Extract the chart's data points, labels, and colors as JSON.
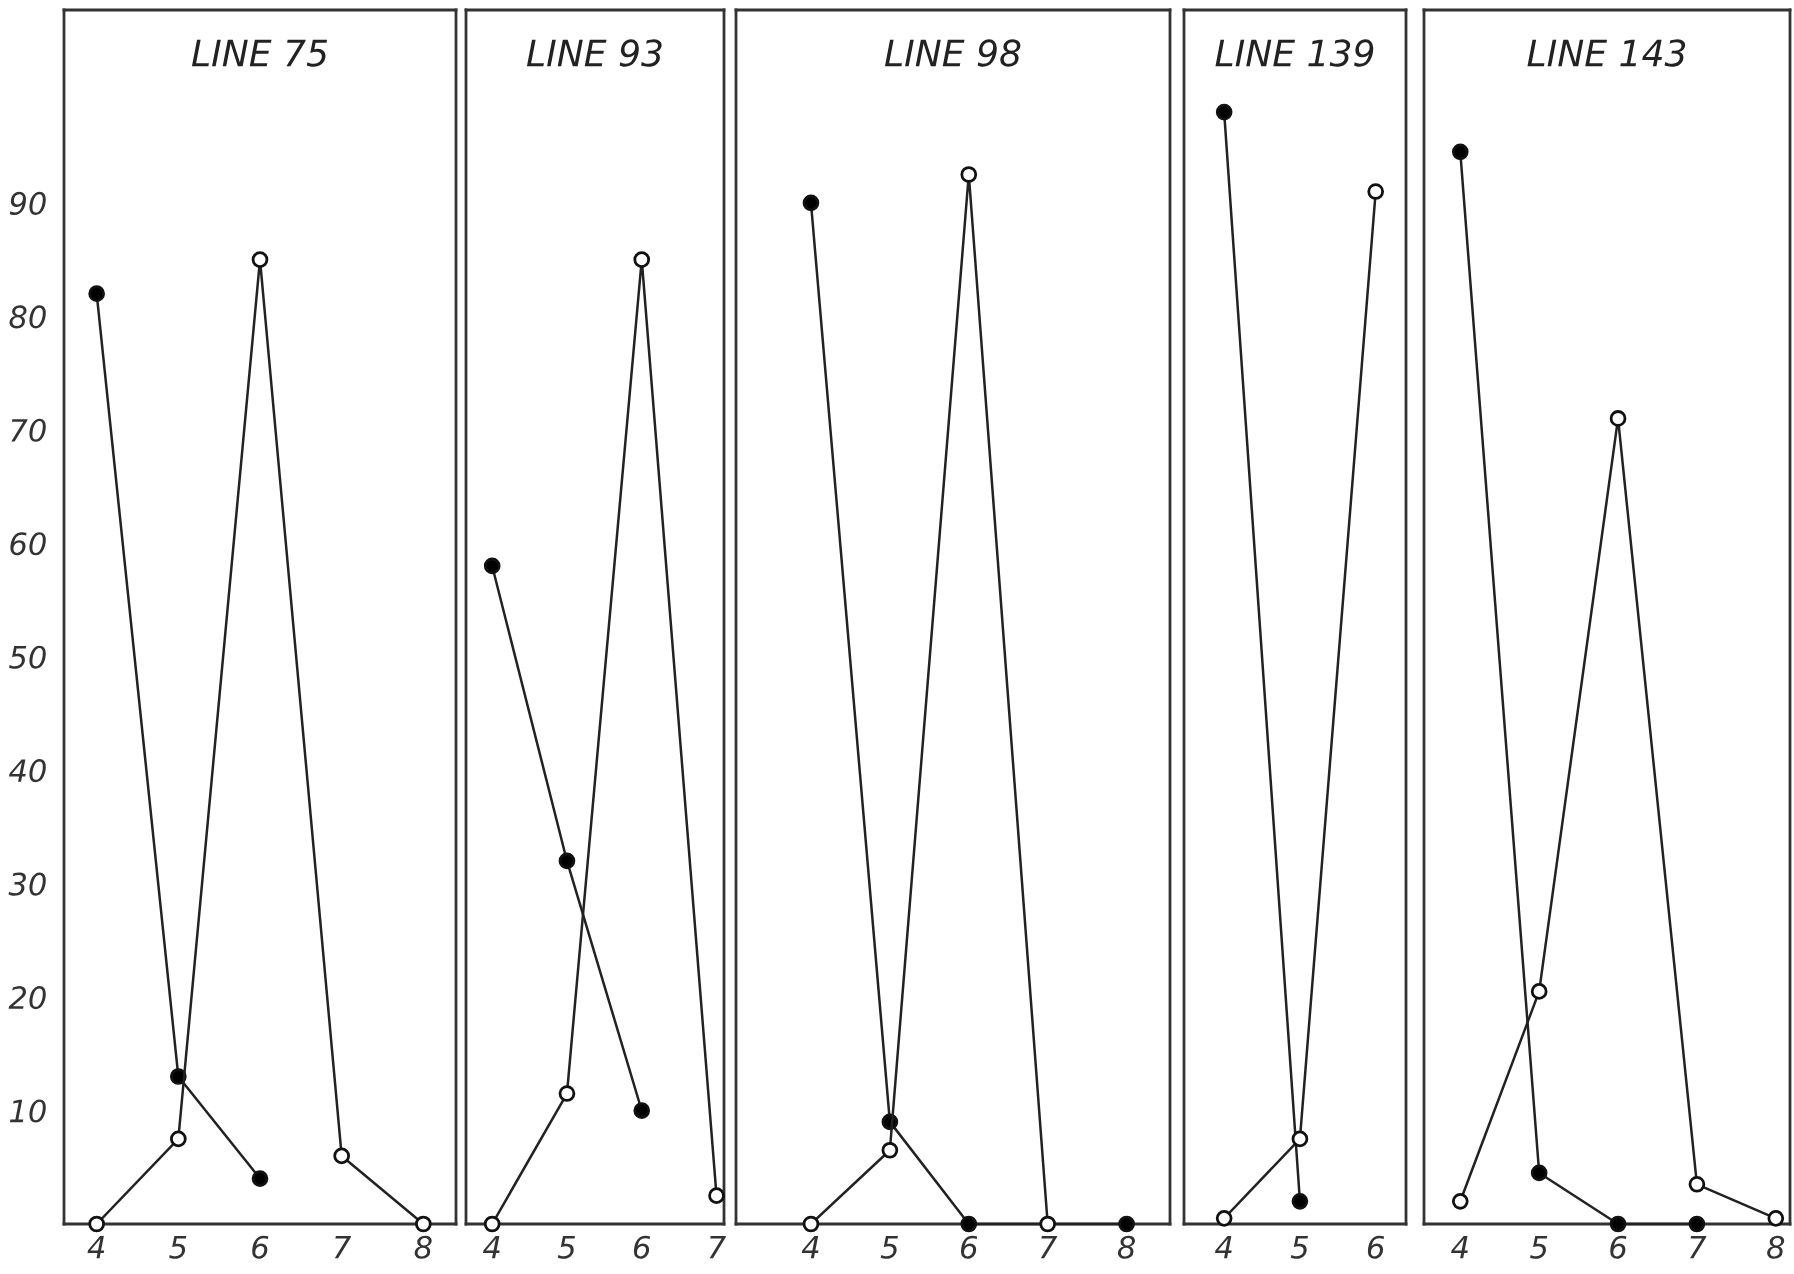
{
  "chart_data": [
    {
      "type": "line",
      "title": "LINE 75",
      "xlim": [
        3.6,
        8.4
      ],
      "xticks": [
        4,
        5,
        6,
        7,
        8
      ],
      "ylim": [
        0,
        107
      ],
      "yticks": [
        10,
        20,
        30,
        40,
        50,
        60,
        70,
        80,
        90
      ],
      "marker": "circle",
      "grid": false,
      "series": [
        {
          "color": "#000000",
          "x": [
            4,
            5,
            6
          ],
          "values": [
            82,
            13,
            4
          ]
        },
        {
          "color": "#ffffff",
          "x": [
            4,
            5,
            6,
            7,
            8
          ],
          "values": [
            0,
            7.5,
            85,
            6,
            0
          ]
        }
      ]
    },
    {
      "type": "line",
      "title": "LINE 93",
      "xlim": [
        3.65,
        7.1
      ],
      "xticks": [
        4,
        5,
        6,
        7
      ],
      "ylim": [
        0,
        107
      ],
      "yticks": [
        10,
        20,
        30,
        40,
        50,
        60,
        70,
        80,
        90
      ],
      "tick_labels": "x",
      "marker": "circle",
      "grid": false,
      "series": [
        {
          "color": "#000000",
          "x": [
            4,
            5,
            6
          ],
          "values": [
            58,
            32,
            10
          ]
        },
        {
          "color": "#ffffff",
          "x": [
            4,
            5,
            6,
            7
          ],
          "values": [
            0,
            11.5,
            85,
            2.5
          ]
        }
      ]
    },
    {
      "type": "line",
      "title": "LINE 98",
      "xlim": [
        3.05,
        8.55
      ],
      "xticks": [
        4,
        5,
        6,
        7,
        8
      ],
      "ylim": [
        0,
        107
      ],
      "yticks": [
        10,
        20,
        30,
        40,
        50,
        60,
        70,
        80,
        90
      ],
      "tick_labels": "x",
      "marker": "circle",
      "grid": false,
      "series": [
        {
          "color": "#000000",
          "x": [
            4,
            5,
            6,
            8
          ],
          "values": [
            90,
            9,
            0,
            0
          ]
        },
        {
          "color": "#ffffff",
          "x": [
            4,
            5,
            6,
            7
          ],
          "values": [
            0,
            6.5,
            92.5,
            0
          ]
        }
      ]
    },
    {
      "type": "line",
      "title": "LINE 139",
      "xlim": [
        3.47,
        6.4
      ],
      "xticks": [
        4,
        5,
        6
      ],
      "ylim": [
        0,
        107
      ],
      "yticks": [
        10,
        20,
        30,
        40,
        50,
        60,
        70,
        80,
        90
      ],
      "tick_labels": "x",
      "marker": "circle",
      "grid": false,
      "series": [
        {
          "color": "#000000",
          "x": [
            4,
            5
          ],
          "values": [
            98,
            2
          ]
        },
        {
          "color": "#ffffff",
          "x": [
            4,
            5,
            6
          ],
          "values": [
            0.5,
            7.5,
            91
          ]
        }
      ]
    },
    {
      "type": "line",
      "title": "LINE 143",
      "xlim": [
        3.54,
        8.18
      ],
      "xticks": [
        4,
        5,
        6,
        7,
        8
      ],
      "ylim": [
        0,
        107
      ],
      "yticks": [
        10,
        20,
        30,
        40,
        50,
        60,
        70,
        80,
        90
      ],
      "tick_labels": "x",
      "marker": "circle",
      "grid": false,
      "series": [
        {
          "color": "#000000",
          "x": [
            4,
            5,
            6,
            7
          ],
          "values": [
            94.5,
            4.5,
            0,
            0
          ]
        },
        {
          "color": "#ffffff",
          "x": [
            4,
            5,
            6,
            7,
            8
          ],
          "values": [
            2,
            20.5,
            71,
            3.5,
            0.5
          ]
        }
      ]
    }
  ]
}
